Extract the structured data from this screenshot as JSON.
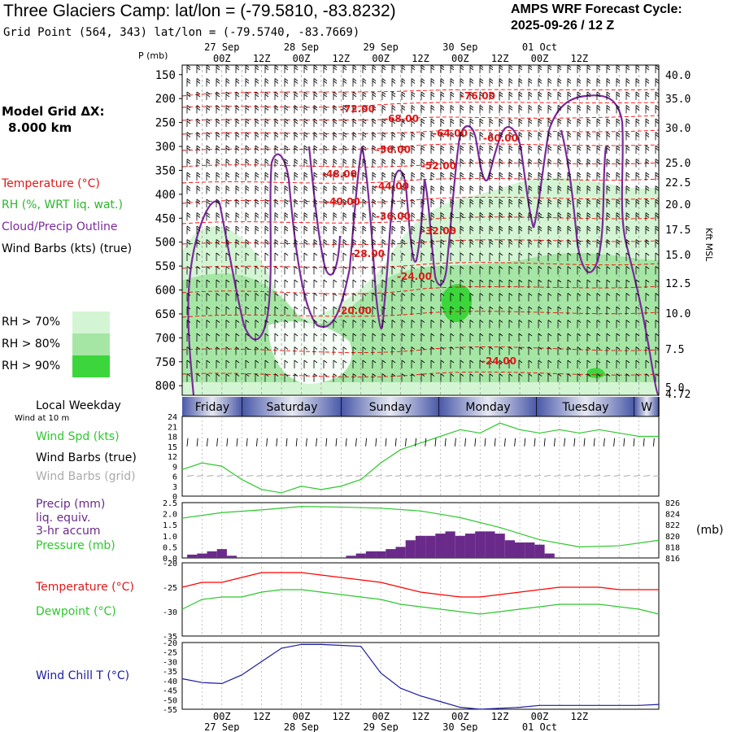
{
  "header": {
    "title": "Three Glaciers Camp:  lat/lon = (-79.5810, -83.8232)",
    "subtitle": "Grid Point (564, 343) lat/lon = (-79.5740, -83.7669)",
    "cycle_label": "AMPS WRF Forecast Cycle:",
    "cycle_value": "2025-09-26 / 12  Z"
  },
  "left_labels": {
    "grid_dx": "Model Grid ΔX:",
    "grid_dx_value": "8.000 km",
    "temperature": "Temperature (°C)",
    "rh": "RH (%, WRT liq. wat.)",
    "cloud": "Cloud/Precip Outline",
    "wind": "Wind Barbs (kts) (true)",
    "rh70": "RH > 70%",
    "rh80": "RH > 80%",
    "rh90": "RH > 90%",
    "p_mb": "P (mb)",
    "kft": "Kft MSL",
    "local_weekday": "Local Weekday",
    "wind_10m": "Wind at 10 m",
    "wind_spd": "Wind Spd (kts)",
    "wind_barbs_true": "Wind Barbs (true)",
    "wind_barbs_grid": "Wind Barbs (grid)",
    "precip": "Precip (mm)",
    "precip2": "liq. equiv.",
    "precip3": "3-hr accum",
    "pressure": "Pressure (mb)",
    "pressure_unit": "(mb)",
    "temperature2": "Temperature (°C)",
    "dewpoint": "Dewpoint (°C)",
    "wind_chill": "Wind Chill T (°C)"
  },
  "colors": {
    "temperature": "#ff0000",
    "rh": "#2fb52f",
    "cloud": "#7a2a9a",
    "rh70": "#d4f5d4",
    "rh80": "#a5e6a5",
    "rh90": "#3cd63c",
    "precip_bar": "#6a2a8a",
    "pressure": "#2ec82e",
    "windchill": "#1a1aa0",
    "windspd": "#2ec82e",
    "grid_barb": "#aaaaaa"
  },
  "weekdays": [
    "Friday",
    "Saturday",
    "Sunday",
    "Monday",
    "Tuesday",
    "W"
  ],
  "time_axis": {
    "hour_labels": [
      "00Z",
      "12Z",
      "00Z",
      "12Z",
      "00Z",
      "12Z",
      "00Z",
      "12Z",
      "00Z",
      "12Z"
    ],
    "date_labels": [
      "27 Sep",
      "28 Sep",
      "29 Sep",
      "30 Sep",
      "01 Oct"
    ]
  },
  "chart_data": [
    {
      "type": "heatmap",
      "name": "cross-section",
      "y_label": "P (mb)",
      "pressure_ticks": [
        150,
        200,
        250,
        300,
        350,
        400,
        450,
        500,
        550,
        600,
        650,
        700,
        750,
        800
      ],
      "height_ticks_kft": [
        "40.0",
        "35.0",
        "30.0",
        "25.0",
        "22.5",
        "20.0",
        "17.5",
        "15.0",
        "12.5",
        "10.0",
        "7.5",
        "5.0",
        "4.72"
      ],
      "temperature_contour_labels": [
        "-76.00",
        "-72.00",
        "-68.00",
        "-64.00",
        "-60.00",
        "-56.00",
        "-52.00",
        "-48.00",
        "-44.00",
        "-40.00",
        "-36.00",
        "-32.00",
        "-28.00",
        "-24.00",
        "-24.00",
        "-20.00"
      ]
    },
    {
      "type": "line",
      "name": "wind speed",
      "yticks": [
        0,
        3,
        6,
        9,
        12,
        15,
        18,
        21,
        24
      ],
      "ylim": [
        0,
        24
      ],
      "x_hours": [
        0,
        6,
        12,
        18,
        24,
        30,
        36,
        42,
        48,
        54,
        60,
        66,
        72,
        78,
        84,
        90,
        96,
        102,
        108,
        114,
        120,
        126,
        132,
        138,
        144
      ],
      "values": [
        8,
        10,
        9,
        5,
        2,
        1,
        3,
        2,
        3,
        5,
        10,
        14,
        16,
        18,
        20,
        19,
        22,
        20,
        19,
        20,
        19,
        20,
        19,
        18,
        18
      ]
    },
    {
      "type": "bar",
      "name": "precip and pressure",
      "ylim": [
        0,
        2.5
      ],
      "yticks": [
        "0.0",
        "0.5",
        "1.0",
        "1.5",
        "2.0",
        "2.5"
      ],
      "pressure_ticks": [
        "816",
        "818",
        "820",
        "822",
        "824",
        "826"
      ],
      "pressure_lim": [
        816,
        826
      ],
      "precip_x_hours": [
        3,
        6,
        9,
        12,
        15,
        51,
        54,
        57,
        60,
        63,
        66,
        69,
        72,
        75,
        78,
        81,
        84,
        87,
        90,
        93,
        96,
        99,
        102,
        105,
        108,
        111
      ],
      "precip": [
        0.15,
        0.2,
        0.3,
        0.4,
        0.1,
        0.1,
        0.2,
        0.3,
        0.3,
        0.4,
        0.5,
        0.8,
        1.0,
        1.0,
        1.1,
        1.2,
        1.0,
        1.1,
        1.2,
        1.2,
        1.1,
        0.8,
        0.7,
        0.7,
        0.6,
        0.2
      ],
      "pressure_x_hours": [
        0,
        12,
        24,
        36,
        48,
        60,
        72,
        84,
        96,
        108,
        120,
        132,
        144
      ],
      "pressure": [
        823.2,
        824.2,
        824.7,
        825.3,
        825.2,
        825,
        824.5,
        823.3,
        821.5,
        819.3,
        818,
        818.2,
        819.2
      ]
    },
    {
      "type": "line",
      "name": "temperature dewpoint",
      "yticks": [
        "-20",
        "-25",
        "-30",
        "-35"
      ],
      "ylim": [
        -35,
        -20
      ],
      "x_hours": [
        0,
        6,
        12,
        18,
        24,
        30,
        36,
        42,
        48,
        54,
        60,
        66,
        72,
        78,
        84,
        90,
        96,
        102,
        108,
        114,
        120,
        126,
        132,
        138,
        144
      ],
      "temperature": [
        -25,
        -24,
        -24,
        -23,
        -22,
        -22,
        -22,
        -22.5,
        -23,
        -23.5,
        -24,
        -25,
        -26,
        -26.5,
        -27,
        -27,
        -26.5,
        -26,
        -25.5,
        -25,
        -25,
        -25,
        -25.5,
        -25.5,
        -25.5
      ],
      "dewpoint": [
        -29.5,
        -27.5,
        -27,
        -27,
        -26,
        -25.5,
        -25.5,
        -26,
        -26.5,
        -27,
        -27.5,
        -28.5,
        -29,
        -29.5,
        -30,
        -30.5,
        -30,
        -29.5,
        -29,
        -28.5,
        -28.5,
        -28.5,
        -29,
        -29.5,
        -30.5
      ]
    },
    {
      "type": "line",
      "name": "wind chill",
      "yticks": [
        "-20",
        "-25",
        "-30",
        "-35",
        "-40",
        "-45",
        "-50",
        "-55"
      ],
      "ylim": [
        -55,
        -20
      ],
      "x_hours": [
        0,
        6,
        12,
        18,
        24,
        30,
        36,
        42,
        48,
        54,
        60,
        66,
        72,
        78,
        84,
        90,
        96,
        102,
        108,
        114,
        120,
        126,
        132,
        138,
        144
      ],
      "values": [
        -39,
        -41,
        -41.5,
        -37,
        -30,
        -23,
        -21,
        -21,
        -21.5,
        -22,
        -36,
        -44,
        -48,
        -51,
        -54,
        -55,
        -54.5,
        -54,
        -53,
        -53,
        -53,
        -53,
        -53,
        -53,
        -52.5
      ]
    }
  ]
}
